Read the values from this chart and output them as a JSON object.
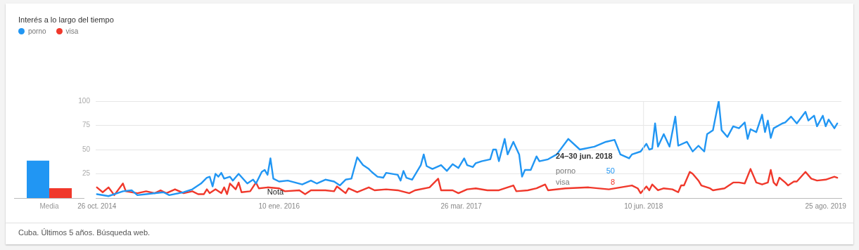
{
  "chart_data": [
    {
      "type": "bar",
      "title": "Interés a lo largo del tiempo",
      "categories": [
        "Media"
      ],
      "ylim": [
        0,
        100
      ],
      "tick_labels": "x",
      "series": [
        {
          "color": "#2196f3",
          "values": [
            38
          ]
        },
        {
          "color": "#f0382b",
          "values": [
            10
          ]
        }
      ]
    },
    {
      "type": "line",
      "legend": "top left",
      "marker": "none",
      "grid": "y",
      "xlim": [
        "2014-10-23",
        "2019-10-02"
      ],
      "xticks": [
        {
          "value": "2014-10-26",
          "label": "26 oct. 2014"
        },
        {
          "value": "2016-01-10",
          "label": "10 ene. 2016"
        },
        {
          "value": "2017-03-26",
          "label": "26 mar. 2017"
        },
        {
          "value": "2018-06-10",
          "label": "10 jun. 2018"
        },
        {
          "value": "2019-08-25",
          "label": "25 ago. 2019"
        }
      ],
      "ylim": [
        0,
        100
      ],
      "yticks": [
        25,
        50,
        75,
        100
      ],
      "ref_lines": [
        {
          "axis": "x",
          "value": "2018-06-10",
          "color": "#e6e6e6"
        }
      ],
      "annotations": [
        "Cuba. Últimos 5 años. Búsqueda web.",
        {
          "text": "Nota",
          "x": "2016-01-01",
          "y": 6
        },
        "24–30 jun. 2018",
        "50",
        "8"
      ],
      "series": [
        {
          "name": "porno",
          "color": "#2196f3",
          "x": [
            "2014-10-26",
            "2014-11-23",
            "2014-12-28",
            "2015-01-18",
            "2015-02-01",
            "2015-02-22",
            "2015-04-05",
            "2015-04-19",
            "2015-05-24",
            "2015-06-14",
            "2015-07-05",
            "2015-07-19",
            "2015-07-26",
            "2015-08-02",
            "2015-08-09",
            "2015-08-16",
            "2015-08-23",
            "2015-08-30",
            "2015-09-13",
            "2015-09-20",
            "2015-10-04",
            "2015-10-25",
            "2015-11-08",
            "2015-11-15",
            "2015-11-29",
            "2015-12-06",
            "2015-12-13",
            "2015-12-20",
            "2015-12-27",
            "2016-01-10",
            "2016-01-31",
            "2016-03-06",
            "2016-03-27",
            "2016-04-10",
            "2016-05-01",
            "2016-05-22",
            "2016-06-05",
            "2016-06-19",
            "2016-07-03",
            "2016-07-17",
            "2016-07-31",
            "2016-08-14",
            "2016-08-21",
            "2016-09-04",
            "2016-09-18",
            "2016-09-25",
            "2016-10-23",
            "2016-10-30",
            "2016-11-06",
            "2016-11-13",
            "2016-11-27",
            "2016-12-18",
            "2016-12-25",
            "2017-01-01",
            "2017-01-15",
            "2017-02-05",
            "2017-02-19",
            "2017-03-05",
            "2017-03-19",
            "2017-04-02",
            "2017-04-09",
            "2017-04-23",
            "2017-04-30",
            "2017-05-14",
            "2017-06-04",
            "2017-06-11",
            "2017-06-18",
            "2017-06-25",
            "2017-07-09",
            "2017-07-16",
            "2017-07-30",
            "2017-08-13",
            "2017-08-20",
            "2017-08-27",
            "2017-09-10",
            "2017-09-24",
            "2017-10-01",
            "2017-10-22",
            "2017-11-12",
            "2017-12-10",
            "2018-01-07",
            "2018-02-11",
            "2018-03-11",
            "2018-04-01",
            "2018-04-15",
            "2018-05-06",
            "2018-05-13",
            "2018-06-03",
            "2018-06-17",
            "2018-06-24",
            "2018-07-01",
            "2018-07-08",
            "2018-07-15",
            "2018-07-29",
            "2018-08-12",
            "2018-08-26",
            "2018-09-02",
            "2018-09-23",
            "2018-10-07",
            "2018-10-21",
            "2018-11-04",
            "2018-11-11",
            "2018-11-25",
            "2018-12-09",
            "2018-12-16",
            "2018-12-30",
            "2019-01-13",
            "2019-01-27",
            "2019-02-10",
            "2019-02-17",
            "2019-02-24",
            "2019-03-10",
            "2019-03-24",
            "2019-03-31",
            "2019-04-07",
            "2019-04-14",
            "2019-04-21",
            "2019-05-12",
            "2019-05-19",
            "2019-06-02",
            "2019-06-16",
            "2019-07-07",
            "2019-07-14",
            "2019-07-28",
            "2019-08-04",
            "2019-08-18",
            "2019-08-25",
            "2019-09-01",
            "2019-09-15",
            "2019-09-22"
          ],
          "values": [
            4,
            2,
            7,
            8,
            3,
            4,
            6,
            3,
            6,
            9,
            15,
            21,
            22,
            12,
            25,
            22,
            26,
            20,
            22,
            18,
            25,
            15,
            19,
            15,
            27,
            29,
            24,
            41,
            20,
            17,
            18,
            14,
            18,
            15,
            19,
            17,
            13,
            19,
            20,
            42,
            34,
            30,
            27,
            22,
            21,
            26,
            24,
            18,
            28,
            21,
            19,
            34,
            45,
            33,
            30,
            34,
            28,
            35,
            31,
            41,
            34,
            32,
            36,
            38,
            40,
            50,
            50,
            38,
            61,
            45,
            58,
            45,
            22,
            29,
            29,
            43,
            38,
            40,
            45,
            61,
            50,
            53,
            58,
            60,
            45,
            41,
            45,
            48,
            56,
            50,
            51,
            77,
            53,
            66,
            53,
            84,
            54,
            58,
            48,
            54,
            48,
            66,
            70,
            100,
            70,
            63,
            74,
            72,
            78,
            61,
            71,
            68,
            86,
            68,
            80,
            62,
            72,
            77,
            78,
            84,
            77,
            89,
            80,
            85,
            74,
            85,
            74,
            81,
            72,
            77
          ]
        },
        {
          "name": "visa",
          "color": "#f0382b",
          "x": [
            "2014-10-26",
            "2014-11-09",
            "2014-11-23",
            "2014-12-07",
            "2014-12-28",
            "2015-01-04",
            "2015-02-01",
            "2015-02-22",
            "2015-03-15",
            "2015-03-29",
            "2015-04-12",
            "2015-05-03",
            "2015-05-24",
            "2015-06-14",
            "2015-06-28",
            "2015-07-12",
            "2015-07-19",
            "2015-07-26",
            "2015-08-09",
            "2015-08-23",
            "2015-08-30",
            "2015-09-06",
            "2015-09-13",
            "2015-09-27",
            "2015-10-04",
            "2015-10-11",
            "2015-11-01",
            "2015-11-15",
            "2015-11-22",
            "2015-12-13",
            "2016-01-10",
            "2016-01-24",
            "2016-02-28",
            "2016-03-13",
            "2016-03-27",
            "2016-05-01",
            "2016-05-22",
            "2016-05-29",
            "2016-06-19",
            "2016-06-26",
            "2016-07-17",
            "2016-08-14",
            "2016-08-28",
            "2016-09-25",
            "2016-10-23",
            "2016-11-20",
            "2016-12-04",
            "2017-01-08",
            "2017-01-29",
            "2017-02-05",
            "2017-03-05",
            "2017-03-19",
            "2017-04-09",
            "2017-04-30",
            "2017-05-28",
            "2017-06-25",
            "2017-07-30",
            "2017-08-06",
            "2017-09-03",
            "2017-09-24",
            "2017-10-15",
            "2017-10-22",
            "2017-12-03",
            "2018-01-28",
            "2018-03-18",
            "2018-05-13",
            "2018-05-27",
            "2018-06-03",
            "2018-06-17",
            "2018-06-24",
            "2018-07-01",
            "2018-07-15",
            "2018-07-29",
            "2018-08-19",
            "2018-09-02",
            "2018-09-09",
            "2018-09-16",
            "2018-09-30",
            "2018-10-07",
            "2018-10-21",
            "2018-10-28",
            "2018-11-18",
            "2018-11-25",
            "2018-12-23",
            "2018-12-30",
            "2019-01-13",
            "2019-01-27",
            "2019-02-10",
            "2019-02-24",
            "2019-03-10",
            "2019-03-24",
            "2019-04-07",
            "2019-04-14",
            "2019-04-21",
            "2019-04-28",
            "2019-05-05",
            "2019-05-19",
            "2019-05-26",
            "2019-06-09",
            "2019-06-16",
            "2019-07-07",
            "2019-07-21",
            "2019-08-04",
            "2019-08-25",
            "2019-09-15",
            "2019-09-22"
          ],
          "values": [
            11,
            6,
            11,
            3,
            15,
            7,
            5,
            7,
            5,
            8,
            5,
            9,
            5,
            7,
            4,
            4,
            9,
            5,
            9,
            5,
            11,
            4,
            15,
            9,
            16,
            6,
            7,
            16,
            10,
            11,
            10,
            7,
            8,
            4,
            8,
            8,
            7,
            12,
            5,
            10,
            6,
            11,
            8,
            9,
            8,
            5,
            8,
            11,
            20,
            8,
            8,
            5,
            9,
            10,
            8,
            8,
            13,
            7,
            8,
            10,
            14,
            8,
            10,
            11,
            9,
            13,
            10,
            5,
            12,
            8,
            14,
            8,
            10,
            9,
            6,
            13,
            13,
            27,
            25,
            18,
            13,
            10,
            8,
            10,
            12,
            16,
            16,
            15,
            30,
            16,
            14,
            16,
            29,
            16,
            13,
            21,
            16,
            13,
            17,
            17,
            27,
            20,
            18,
            19,
            22,
            21
          ]
        }
      ]
    }
  ]
}
